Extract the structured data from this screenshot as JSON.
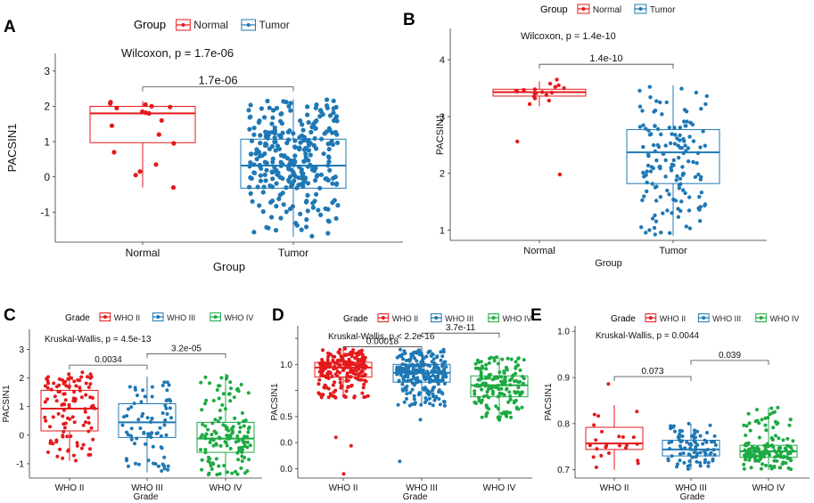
{
  "chart_data": [
    {
      "id": "A",
      "type": "box",
      "panel_label": "A",
      "legend": {
        "title": "Group",
        "entries": [
          "Normal",
          "Tumor"
        ]
      },
      "annotation": "Wilcoxon, p = 1.7e-06",
      "comparisons": [
        {
          "from": "Normal",
          "to": "Tumor",
          "label": "1.7e-06"
        }
      ],
      "xlabel": "Group",
      "ylabel": "PACSIN1",
      "categories": [
        "Normal",
        "Tumor"
      ],
      "ylim": [
        -1.85,
        3.5
      ],
      "yticks": [
        -1,
        0,
        1,
        2,
        3
      ],
      "series": [
        {
          "name": "Normal",
          "color": "#E41A1C",
          "box": {
            "q1": 0.97,
            "median": 1.8,
            "q3": 2.0,
            "whisker_low": -0.3,
            "whisker_high": 2.15
          },
          "points": [
            2.12,
            2.08,
            2.05,
            2.0,
            1.98,
            1.95,
            1.85,
            1.82,
            1.8,
            1.6,
            1.45,
            1.2,
            0.95,
            0.7,
            0.35,
            0.15,
            0.05,
            -0.3
          ],
          "n": 18
        },
        {
          "name": "Tumor",
          "color": "#1F78B4",
          "box": {
            "q1": -0.32,
            "median": 0.32,
            "q3": 1.07,
            "whisker_low": -1.7,
            "whisker_high": 2.2
          },
          "n": 300,
          "spread": [
            -1.7,
            2.2
          ]
        }
      ]
    },
    {
      "id": "B",
      "type": "box",
      "panel_label": "B",
      "legend": {
        "title": "Group",
        "entries": [
          "Normal",
          "Tumor"
        ]
      },
      "annotation": "Wilcoxon, p = 1.4e-10",
      "comparisons": [
        {
          "from": "Normal",
          "to": "Tumor",
          "label": "1.4e-10"
        }
      ],
      "xlabel": "Group",
      "ylabel": "PACSIN1",
      "categories": [
        "Normal",
        "Tumor"
      ],
      "ylim": [
        0.82,
        4.55
      ],
      "yticks": [
        1,
        2,
        3,
        4
      ],
      "series": [
        {
          "name": "Normal",
          "color": "#E41A1C",
          "box": {
            "q1": 3.36,
            "median": 3.43,
            "q3": 3.48,
            "whisker_low": 3.18,
            "whisker_high": 3.62
          },
          "points": [
            3.65,
            3.58,
            3.55,
            3.52,
            3.5,
            3.48,
            3.47,
            3.46,
            3.45,
            3.44,
            3.43,
            3.42,
            3.41,
            3.4,
            3.38,
            3.35,
            3.32,
            3.28,
            3.22,
            2.56,
            1.98
          ],
          "n": 21
        },
        {
          "name": "Tumor",
          "color": "#1F78B4",
          "box": {
            "q1": 1.82,
            "median": 2.37,
            "q3": 2.77,
            "whisker_low": 0.9,
            "whisker_high": 3.55
          },
          "n": 150,
          "spread": [
            0.9,
            3.55
          ]
        }
      ]
    },
    {
      "id": "C",
      "type": "box",
      "panel_label": "C",
      "legend": {
        "title": "Grade",
        "entries": [
          "WHO II",
          "WHO III",
          "WHO IV"
        ]
      },
      "annotation": "Kruskal-Wallis, p = 4.5e-13",
      "comparisons": [
        {
          "from": "WHO II",
          "to": "WHO III",
          "label": "0.0034"
        },
        {
          "from": "WHO III",
          "to": "WHO IV",
          "label": "3.2e-05"
        }
      ],
      "xlabel": "Grade",
      "ylabel": "PACSIN1",
      "categories": [
        "WHO II",
        "WHO III",
        "WHO IV"
      ],
      "ylim": [
        -1.5,
        3.7
      ],
      "yticks": [
        -1,
        0,
        1,
        2,
        3
      ],
      "series": [
        {
          "name": "WHO II",
          "color": "#E41A1C",
          "box": {
            "q1": 0.15,
            "median": 0.93,
            "q3": 1.57,
            "whisker_low": -0.9,
            "whisker_high": 2.2
          },
          "n": 110,
          "spread": [
            -0.9,
            2.2
          ]
        },
        {
          "name": "WHO III",
          "color": "#1F78B4",
          "box": {
            "q1": -0.08,
            "median": 0.45,
            "q3": 1.1,
            "whisker_low": -1.3,
            "whisker_high": 2.05
          },
          "n": 80,
          "spread": [
            -1.3,
            2.05
          ]
        },
        {
          "name": "WHO IV",
          "color": "#1DAA42",
          "box": {
            "q1": -0.6,
            "median": -0.12,
            "q3": 0.45,
            "whisker_low": -1.45,
            "whisker_high": 2.15
          },
          "n": 140,
          "spread": [
            -1.45,
            2.15
          ]
        }
      ]
    },
    {
      "id": "D",
      "type": "box",
      "panel_label": "D",
      "legend": {
        "title": "Grade",
        "entries": [
          "WHO II",
          "WHO III",
          "WHO IV"
        ]
      },
      "annotation": "Kruskal-Wallis, p < 2.2e-16",
      "comparisons": [
        {
          "from": "WHO II",
          "to": "WHO III",
          "label": "0.00018"
        },
        {
          "from": "WHO III",
          "to": "WHO IV",
          "label": "3.7e-11"
        }
      ],
      "xlabel": "Grade",
      "ylabel": "PACSIN1",
      "categories": [
        "WHO II",
        "WHO III",
        "WHO IV"
      ],
      "ylim": [
        -0.09,
        1.37
      ],
      "yticks": [
        0.0,
        0.25,
        0.5,
        0.75,
        1.0,
        1.25
      ],
      "ytick_labels": [
        "0.0",
        "0.5",
        "1.0"
      ],
      "series": [
        {
          "name": "WHO II",
          "color": "#E41A1C",
          "box": {
            "q1": 0.88,
            "median": 0.97,
            "q3": 1.02,
            "whisker_low": 0.68,
            "whisker_high": 1.15
          },
          "n": 220,
          "spread": [
            0.68,
            1.15
          ],
          "outliers": [
            0.3,
            0.22,
            -0.05
          ]
        },
        {
          "name": "WHO III",
          "color": "#1F78B4",
          "box": {
            "q1": 0.83,
            "median": 0.92,
            "q3": 1.0,
            "whisker_low": 0.6,
            "whisker_high": 1.15
          },
          "n": 260,
          "spread": [
            0.6,
            1.15
          ],
          "outliers": [
            0.47,
            0.07
          ]
        },
        {
          "name": "WHO IV",
          "color": "#1DAA42",
          "box": {
            "q1": 0.69,
            "median": 0.8,
            "q3": 0.89,
            "whisker_low": 0.46,
            "whisker_high": 1.07
          },
          "n": 160,
          "spread": [
            0.46,
            1.07
          ]
        }
      ]
    },
    {
      "id": "E",
      "type": "box",
      "panel_label": "E",
      "legend": {
        "title": "Grade",
        "entries": [
          "WHO II",
          "WHO III",
          "WHO IV"
        ]
      },
      "annotation": "Kruskal-Wallis, p = 0.0044",
      "comparisons": [
        {
          "from": "WHO II",
          "to": "WHO III",
          "label": "0.073"
        },
        {
          "from": "WHO III",
          "to": "WHO IV",
          "label": "0.039"
        }
      ],
      "xlabel": "Grade",
      "ylabel": "PACSIN1",
      "categories": [
        "WHO II",
        "WHO III",
        "WHO IV"
      ],
      "ylim": [
        0.682,
        1.012
      ],
      "yticks": [
        0.7,
        0.8,
        0.9,
        1.0
      ],
      "ytick_labels": [
        "0.7",
        "0.8",
        "0.9",
        "1.0"
      ],
      "series": [
        {
          "name": "WHO II",
          "color": "#E41A1C",
          "box": {
            "q1": 0.744,
            "median": 0.757,
            "q3": 0.792,
            "whisker_low": 0.7,
            "whisker_high": 0.84
          },
          "n": 24,
          "spread": [
            0.7,
            0.84
          ],
          "outliers": [
            0.886
          ]
        },
        {
          "name": "WHO III",
          "color": "#1F78B4",
          "box": {
            "q1": 0.73,
            "median": 0.744,
            "q3": 0.764,
            "whisker_low": 0.7,
            "whisker_high": 0.8
          },
          "n": 90,
          "spread": [
            0.7,
            0.8
          ]
        },
        {
          "name": "WHO IV",
          "color": "#1DAA42",
          "box": {
            "q1": 0.727,
            "median": 0.74,
            "q3": 0.753,
            "whisker_low": 0.7,
            "whisker_high": 0.835
          },
          "n": 150,
          "spread": [
            0.7,
            0.835
          ]
        }
      ]
    }
  ]
}
